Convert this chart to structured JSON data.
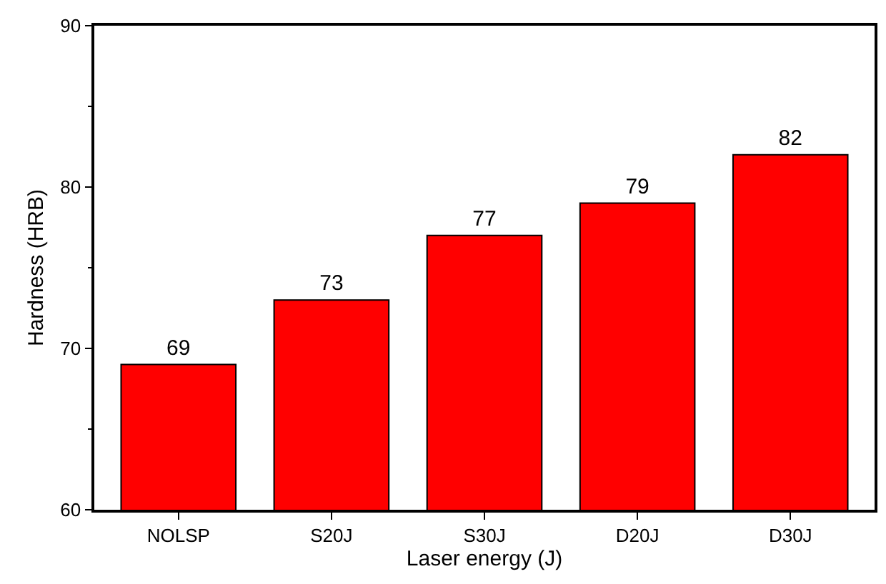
{
  "chart_data": {
    "type": "bar",
    "xlabel": "Laser energy (J)",
    "ylabel": "Hardness (HRB)",
    "categories": [
      "NOLSP",
      "S20J",
      "S30J",
      "D20J",
      "D30J"
    ],
    "values": [
      69,
      73,
      77,
      79,
      82
    ],
    "color": "#ff0000",
    "ylim": [
      60,
      90
    ],
    "yticks": [
      60,
      70,
      80,
      90
    ],
    "data_labels": true
  }
}
